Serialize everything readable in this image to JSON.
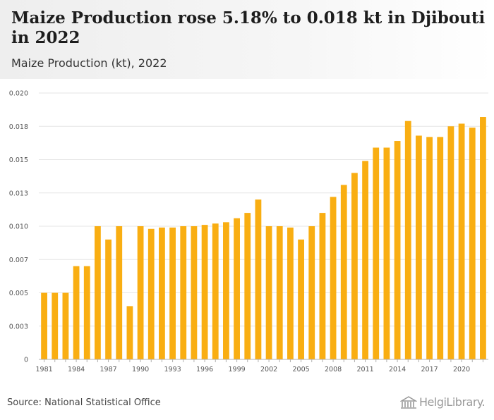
{
  "header": {
    "title": "Maize Production rose 5.18% to 0.018 kt in Djibouti in 2022",
    "subtitle": "Maize Production (kt), 2022"
  },
  "footer": {
    "source": "Source: National Statistical Office",
    "logo_text": "HelgiLibrary."
  },
  "colors": {
    "bar": "#F9AE12",
    "grid": "#e6e6e6",
    "axis": "#b0b0b0"
  },
  "chart_data": {
    "type": "bar",
    "title": "Maize Production rose 5.18% to 0.018 kt in Djibouti in 2022",
    "subtitle": "Maize Production (kt), 2022",
    "xlabel": "",
    "ylabel": "",
    "ylim": [
      0,
      0.02
    ],
    "grid": true,
    "y_ticks": [
      0,
      0.0025,
      0.005,
      0.0075,
      0.01,
      0.0125,
      0.015,
      0.0175,
      0.02
    ],
    "y_tick_labels": [
      "0",
      "0.003",
      "0.005",
      "0.007",
      "0.010",
      "0.013",
      "0.015",
      "0.018",
      "0.020"
    ],
    "x_tick_labels": [
      "1981",
      "1984",
      "1987",
      "1990",
      "1993",
      "1996",
      "1999",
      "2002",
      "2005",
      "2008",
      "2011",
      "2014",
      "2017",
      "2020"
    ],
    "categories": [
      "1981",
      "1982",
      "1983",
      "1984",
      "1985",
      "1986",
      "1987",
      "1988",
      "1989",
      "1990",
      "1991",
      "1992",
      "1993",
      "1994",
      "1995",
      "1996",
      "1997",
      "1998",
      "1999",
      "2000",
      "2001",
      "2002",
      "2003",
      "2004",
      "2005",
      "2006",
      "2007",
      "2008",
      "2009",
      "2010",
      "2011",
      "2012",
      "2013",
      "2014",
      "2015",
      "2016",
      "2017",
      "2018",
      "2019",
      "2020",
      "2021",
      "2022"
    ],
    "values": [
      0.005,
      0.005,
      0.005,
      0.007,
      0.007,
      0.01,
      0.009,
      0.01,
      0.004,
      0.01,
      0.0098,
      0.0099,
      0.0099,
      0.01,
      0.01,
      0.0101,
      0.0102,
      0.0103,
      0.0106,
      0.011,
      0.012,
      0.01,
      0.01,
      0.0099,
      0.009,
      0.01,
      0.011,
      0.0122,
      0.0131,
      0.014,
      0.0149,
      0.0159,
      0.0159,
      0.0164,
      0.0179,
      0.0168,
      0.0167,
      0.0167,
      0.0175,
      0.0177,
      0.0174,
      0.0182
    ]
  }
}
